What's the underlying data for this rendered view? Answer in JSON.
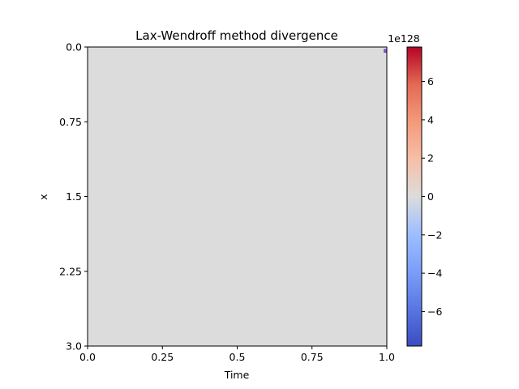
{
  "chart_data": {
    "type": "heatmap",
    "title": "Lax-Wendroff method divergence",
    "xlabel": "Time",
    "ylabel": "x",
    "xlim": [
      0.0,
      1.0
    ],
    "ylim": [
      0.0,
      3.0
    ],
    "y_inverted": true,
    "x_ticks": [
      "0.0",
      "0.25",
      "0.5",
      "0.75",
      "1.0"
    ],
    "x_tick_values": [
      0.0,
      0.25,
      0.5,
      0.75,
      1.0
    ],
    "y_ticks": [
      "0.0",
      "0.75",
      "1.5",
      "2.25",
      "3.0"
    ],
    "y_tick_values": [
      0.0,
      0.75,
      1.5,
      2.25,
      3.0
    ],
    "background_value": 0,
    "background_color": "#dcdcdc",
    "colormap": "coolwarm",
    "colorbar": {
      "min": -7.8,
      "max": 7.8,
      "offset_label": "1e128",
      "ticks": [
        "−6",
        "−4",
        "−2",
        "0",
        "2",
        "4",
        "6"
      ],
      "tick_values": [
        -6,
        -4,
        -2,
        0,
        2,
        4,
        6
      ]
    },
    "highlight_cells": [
      {
        "time": 0.995,
        "x": 0.045,
        "color": "#6a4ec4"
      },
      {
        "time": 0.995,
        "x": 0.03,
        "color": "#8c5ad0"
      }
    ]
  }
}
